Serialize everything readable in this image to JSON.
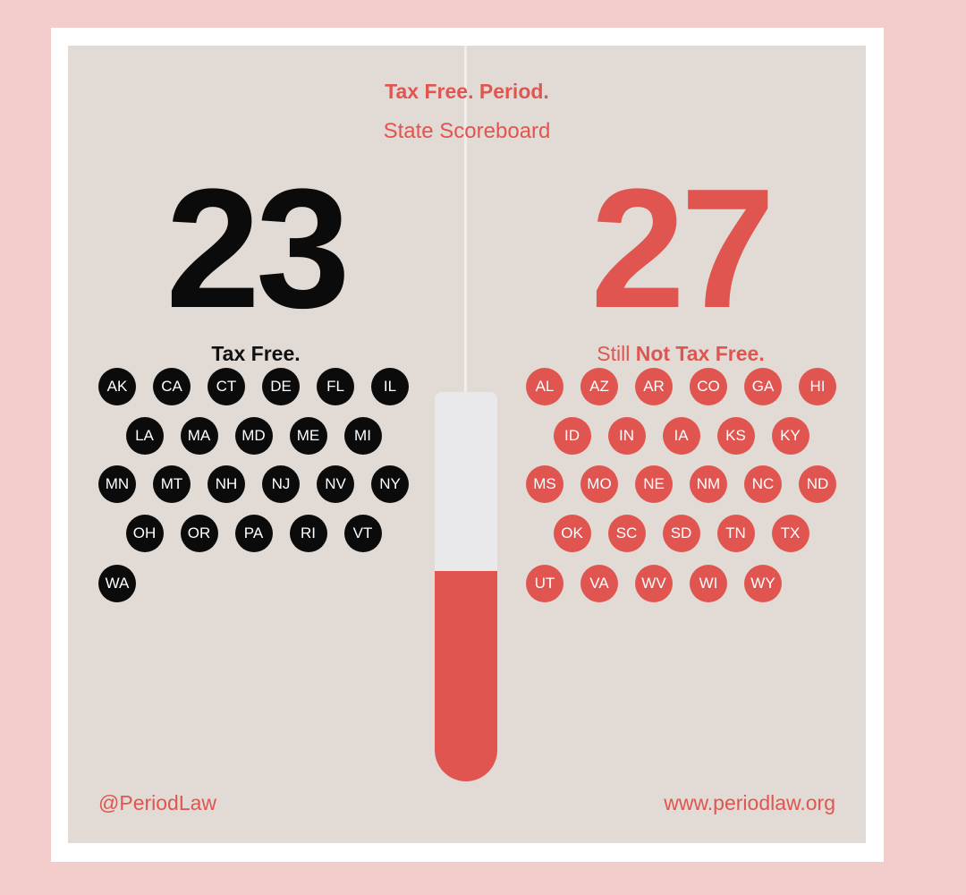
{
  "title": "Tax Free. Period.",
  "subtitle": "State Scoreboard",
  "colors": {
    "accent": "#e05550",
    "dark": "#0b0b0b",
    "background": "#e2dbd5",
    "outer": "#f3cdcc"
  },
  "tax_free": {
    "count": "23",
    "label": "Tax Free.",
    "states": [
      "AK",
      "CA",
      "CT",
      "DE",
      "FL",
      "IL",
      "LA",
      "MA",
      "MD",
      "ME",
      "MI",
      "MN",
      "MT",
      "NH",
      "NJ",
      "NV",
      "NY",
      "OH",
      "OR",
      "PA",
      "RI",
      "VT",
      "WA"
    ]
  },
  "not_tax_free": {
    "count": "27",
    "label_prefix": "Still",
    "label_bold": "Not Tax Free.",
    "states": [
      "AL",
      "AZ",
      "AR",
      "CO",
      "GA",
      "HI",
      "ID",
      "IN",
      "IA",
      "KS",
      "KY",
      "MS",
      "MO",
      "NE",
      "NM",
      "NC",
      "ND",
      "OK",
      "SC",
      "SD",
      "TN",
      "TX",
      "UT",
      "VA",
      "WV",
      "WI",
      "WY"
    ]
  },
  "thermometer": {
    "fill_fraction": 0.54
  },
  "footer": {
    "handle": "@PeriodLaw",
    "website": "www.periodlaw.org"
  }
}
